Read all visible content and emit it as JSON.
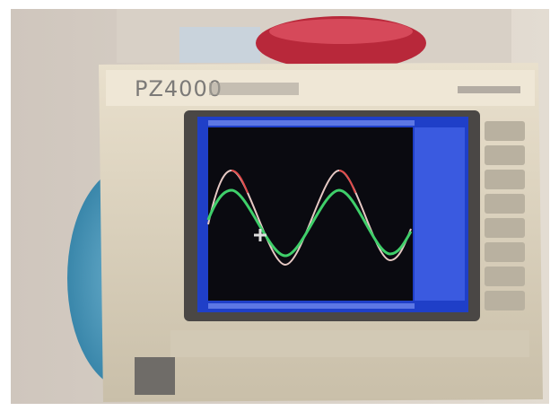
{
  "device": {
    "model": "PZ4000"
  }
}
